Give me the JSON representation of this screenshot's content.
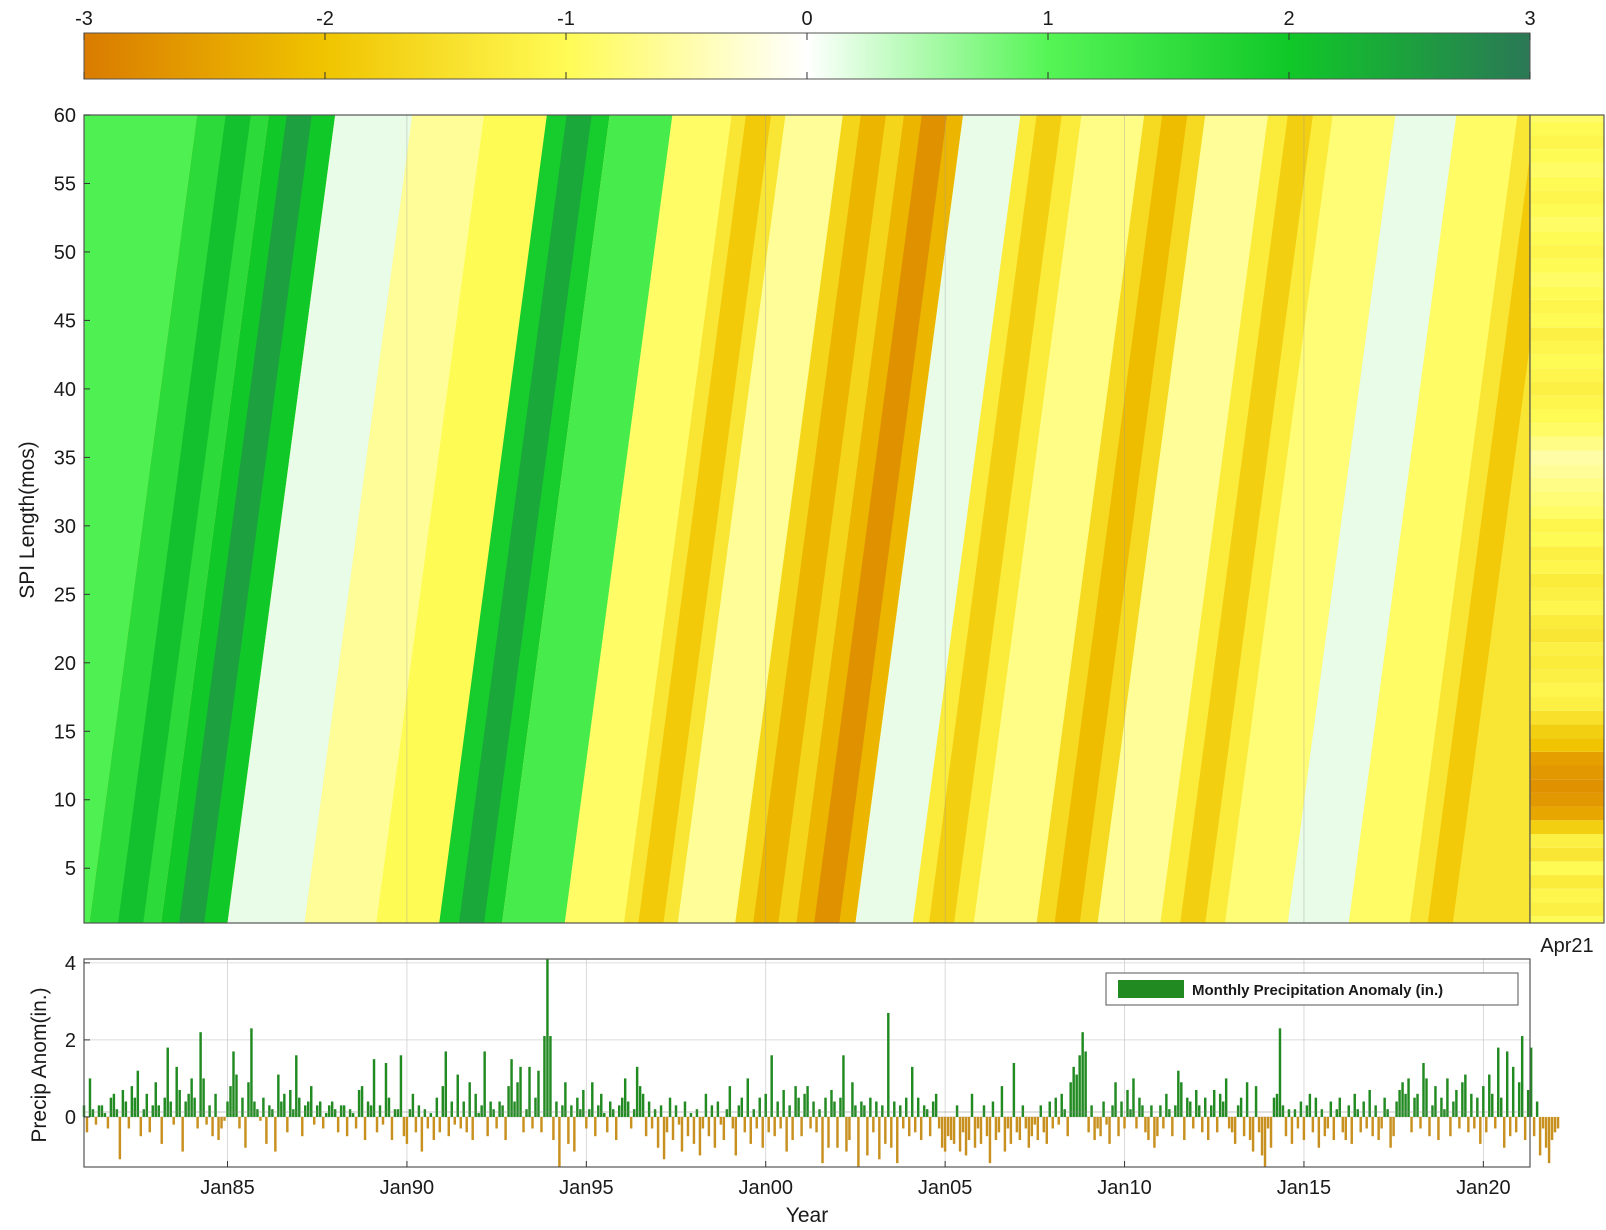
{
  "chart_data": [
    {
      "type": "colorbar",
      "ticks": [
        -3,
        -2,
        -1,
        0,
        1,
        2,
        3
      ],
      "tick_labels": [
        "-3",
        "-2",
        "-1",
        "0",
        "1",
        "2",
        "3"
      ],
      "range": [
        -3,
        3
      ],
      "colors": {
        "-3": "#d97b00",
        "-2": "#f0c400",
        "-1": "#fffb55",
        "0": "#ffffff",
        "1": "#55f555",
        "2": "#10c828",
        "3": "#2a7855"
      }
    },
    {
      "type": "heatmap",
      "ylabel": "SPI Length(mos)",
      "xlabel": "",
      "ylim": [
        1,
        60
      ],
      "y_ticks": [
        5,
        10,
        15,
        20,
        25,
        30,
        35,
        40,
        45,
        50,
        55,
        60
      ],
      "x_range": [
        1981.0,
        2021.3
      ],
      "x_gridlines": [
        1990,
        2000,
        2005,
        2010,
        2015
      ],
      "bands_note": "diagonal SPI anomaly bands",
      "bands": [
        {
          "x": 1981.5,
          "value": 1.1
        },
        {
          "x": 1983.8,
          "value": 1.6
        },
        {
          "x": 1985.5,
          "value": 2.0
        },
        {
          "x": 1987.5,
          "value": 0.3
        },
        {
          "x": 1989.8,
          "value": -0.6
        },
        {
          "x": 1991.5,
          "value": -1.0
        },
        {
          "x": 1993.3,
          "value": 1.9
        },
        {
          "x": 1995.0,
          "value": 1.2
        },
        {
          "x": 1996.8,
          "value": -0.9
        },
        {
          "x": 1998.3,
          "value": -1.4
        },
        {
          "x": 1999.8,
          "value": -0.6
        },
        {
          "x": 2001.5,
          "value": -1.7
        },
        {
          "x": 2003.2,
          "value": -2.2
        },
        {
          "x": 2004.8,
          "value": 0.3
        },
        {
          "x": 2006.4,
          "value": -1.3
        },
        {
          "x": 2008.2,
          "value": -0.7
        },
        {
          "x": 2009.9,
          "value": -1.6
        },
        {
          "x": 2011.6,
          "value": -0.6
        },
        {
          "x": 2013.4,
          "value": -1.3
        },
        {
          "x": 2015.2,
          "value": -0.8
        },
        {
          "x": 2016.9,
          "value": 0.3
        },
        {
          "x": 2018.6,
          "value": -0.9
        },
        {
          "x": 2020.3,
          "value": -1.4
        }
      ],
      "current_column": {
        "label": "Apr21",
        "spi_by_length": [
          -1.0,
          -1.2,
          -1.1,
          -1.3,
          -1.0,
          -1.4,
          -1.2,
          -1.8,
          -2.4,
          -2.6,
          -2.7,
          -2.6,
          -2.5,
          -2.0,
          -1.8,
          -1.5,
          -1.2,
          -1.1,
          -1.2,
          -1.3,
          -1.2,
          -1.4,
          -1.3,
          -1.1,
          -1.2,
          -1.3,
          -1.1,
          -1.2,
          -1.0,
          -1.1,
          -0.9,
          -0.8,
          -0.7,
          -0.6,
          -0.5,
          -0.7,
          -0.9,
          -1.0,
          -1.1,
          -1.2,
          -1.1,
          -1.0,
          -1.1,
          -1.2,
          -1.0,
          -1.1,
          -1.0,
          -0.9,
          -1.0,
          -1.1,
          -1.0,
          -0.9,
          -1.0,
          -1.1,
          -1.0,
          -0.9,
          -1.0,
          -1.1,
          -1.0,
          -0.9
        ]
      }
    },
    {
      "type": "bar",
      "xlabel": "Year",
      "ylabel": "Precip Anom(in.)",
      "ylim": [
        -1.3,
        4.1
      ],
      "y_ticks": [
        0,
        2,
        4
      ],
      "x_range": [
        1981.0,
        2021.3
      ],
      "x_ticks": [
        {
          "x": 1985.0,
          "label": "Jan85"
        },
        {
          "x": 1990.0,
          "label": "Jan90"
        },
        {
          "x": 1995.0,
          "label": "Jan95"
        },
        {
          "x": 2000.0,
          "label": "Jan00"
        },
        {
          "x": 2005.0,
          "label": "Jan05"
        },
        {
          "x": 2010.0,
          "label": "Jan10"
        },
        {
          "x": 2015.0,
          "label": "Jan15"
        },
        {
          "x": 2020.0,
          "label": "Jan20"
        }
      ],
      "legend": {
        "label": "Monthly Precipitation Anomaly (in.)",
        "position": "top-right"
      },
      "colors": {
        "positive": "#218a21",
        "negative": "#c8901e"
      },
      "values_note": "monthly anomalies, Jan 1981 onward",
      "start": 1981.0,
      "step": 0.08333,
      "values": [
        0.3,
        -0.4,
        1.0,
        0.2,
        -0.2,
        0.3,
        0.3,
        0.1,
        -0.3,
        0.5,
        0.6,
        0.2,
        -1.1,
        0.7,
        0.4,
        -0.3,
        0.8,
        0.5,
        1.2,
        -0.5,
        0.2,
        0.6,
        -0.4,
        0.3,
        0.9,
        0.3,
        -0.7,
        0.5,
        1.8,
        0.4,
        -0.2,
        1.3,
        0.7,
        -0.9,
        0.4,
        0.6,
        1.0,
        0.5,
        -0.3,
        2.2,
        1.0,
        -0.2,
        0.3,
        -0.5,
        0.6,
        -0.6,
        -0.3,
        -0.1,
        0.4,
        0.8,
        1.7,
        1.1,
        -0.3,
        0.5,
        -0.8,
        0.9,
        2.3,
        0.4,
        0.2,
        -0.1,
        0.5,
        -0.7,
        0.3,
        0.2,
        -0.9,
        1.1,
        0.4,
        0.6,
        -0.4,
        0.7,
        0.2,
        1.6,
        0.5,
        -0.5,
        0.3,
        0.4,
        0.8,
        -0.2,
        0.3,
        0.4,
        -0.3,
        0.1,
        0.3,
        0.4,
        0.2,
        -0.4,
        0.3,
        0.3,
        -0.5,
        0.2,
        0.1,
        -0.3,
        0.7,
        0.8,
        -0.6,
        0.4,
        0.3,
        1.5,
        -0.4,
        0.3,
        -0.2,
        1.4,
        0.5,
        -0.6,
        0.2,
        0.2,
        1.6,
        -0.5,
        -0.7,
        0.2,
        0.6,
        -0.4,
        0.3,
        -0.9,
        0.2,
        -0.3,
        0.1,
        -0.6,
        0.5,
        -0.4,
        0.8,
        1.7,
        -0.5,
        0.4,
        -0.2,
        1.1,
        -0.3,
        0.4,
        -0.4,
        0.9,
        -0.6,
        0.6,
        0.1,
        0.3,
        1.7,
        -0.5,
        0.4,
        0.2,
        -0.3,
        0.4,
        0.3,
        -0.6,
        0.8,
        1.5,
        0.4,
        0.9,
        1.3,
        -0.4,
        0.2,
        1.3,
        -0.3,
        0.5,
        1.2,
        -0.4,
        2.1,
        4.1,
        2.1,
        -0.6,
        0.4,
        -1.3,
        0.3,
        0.9,
        -0.7,
        0.3,
        -0.9,
        0.5,
        0.2,
        0.7,
        -0.3,
        0.2,
        0.9,
        -0.5,
        0.3,
        0.6,
        0.1,
        -0.4,
        0.4,
        0.2,
        -0.6,
        0.3,
        0.5,
        1.0,
        0.4,
        -0.3,
        0.2,
        1.3,
        0.8,
        0.6,
        -0.5,
        0.4,
        -0.3,
        0.2,
        -0.8,
        0.3,
        -1.1,
        -0.4,
        0.5,
        -0.6,
        0.3,
        -0.2,
        -0.9,
        0.4,
        -0.5,
        0.1,
        -0.7,
        0.2,
        -1.0,
        -0.3,
        0.6,
        -0.5,
        0.3,
        -0.8,
        0.4,
        -0.2,
        -0.6,
        0.2,
        0.8,
        -0.3,
        -1.0,
        0.3,
        0.5,
        -0.4,
        1.0,
        -0.7,
        0.2,
        -0.3,
        0.5,
        -0.8,
        0.6,
        -0.4,
        1.6,
        -0.5,
        0.4,
        -0.3,
        0.7,
        -0.9,
        0.3,
        -0.6,
        0.8,
        0.5,
        -0.5,
        0.6,
        0.8,
        -0.3,
        0.4,
        -0.4,
        0.2,
        -1.2,
        0.5,
        -0.8,
        0.7,
        0.4,
        -0.8,
        0.5,
        1.6,
        -0.9,
        -0.6,
        0.9,
        0.3,
        -1.3,
        0.4,
        0.3,
        -1.0,
        0.5,
        -0.4,
        0.4,
        -1.1,
        0.3,
        -0.7,
        2.7,
        -0.8,
        0.4,
        -1.2,
        0.3,
        -0.3,
        0.5,
        -0.5,
        1.3,
        -0.4,
        0.5,
        -0.6,
        0.3,
        0.2,
        -0.5,
        0.4,
        0.6,
        -0.3,
        -0.8,
        -0.9,
        -0.5,
        -0.6,
        -0.7,
        0.3,
        -0.9,
        -0.4,
        -1.0,
        -0.6,
        0.6,
        -0.8,
        -0.3,
        -0.7,
        0.3,
        -0.5,
        -1.2,
        0.4,
        -0.6,
        -0.4,
        0.8,
        -0.9,
        -0.3,
        -0.7,
        1.4,
        -0.4,
        -0.6,
        0.3,
        -0.3,
        -0.8,
        -0.5,
        -0.2,
        -0.6,
        0.3,
        -0.4,
        -0.7,
        0.4,
        -0.3,
        0.5,
        -0.2,
        0.6,
        0.2,
        -0.5,
        0.9,
        1.3,
        1.1,
        1.6,
        2.2,
        1.7,
        -0.4,
        0.3,
        -0.6,
        -0.3,
        -0.5,
        0.4,
        -0.2,
        -0.7,
        0.3,
        0.9,
        -0.5,
        0.4,
        -0.3,
        0.7,
        0.2,
        1.0,
        -0.3,
        0.5,
        0.3,
        -0.4,
        -0.6,
        0.3,
        -0.8,
        -0.5,
        0.3,
        -0.3,
        0.6,
        0.2,
        -0.5,
        0.3,
        1.2,
        0.9,
        -0.6,
        0.5,
        0.4,
        -0.3,
        0.7,
        0.3,
        -0.4,
        0.5,
        -0.6,
        0.3,
        0.7,
        -0.4,
        0.6,
        0.4,
        1.0,
        -0.3,
        -0.4,
        -0.7,
        0.3,
        0.5,
        -0.5,
        0.9,
        -0.6,
        -0.9,
        0.8,
        -0.4,
        -1.0,
        -1.3,
        -0.3,
        -0.8,
        0.5,
        0.6,
        2.3,
        0.3,
        -0.5,
        0.2,
        -0.7,
        0.2,
        -0.3,
        0.4,
        -0.6,
        0.3,
        0.6,
        -0.4,
        0.5,
        -0.8,
        0.2,
        -0.5,
        -0.3,
        0.4,
        -0.6,
        0.2,
        0.5,
        -0.4,
        -0.6,
        0.3,
        -0.7,
        0.6,
        0.2,
        -0.4,
        0.4,
        -0.3,
        0.7,
        -0.5,
        0.3,
        -0.6,
        -0.3,
        0.5,
        0.2,
        -0.8,
        -0.5,
        0.4,
        0.7,
        0.9,
        0.6,
        1.0,
        -0.4,
        0.5,
        0.6,
        -0.3,
        1.4,
        1.0,
        -0.5,
        0.3,
        0.8,
        -0.6,
        0.5,
        0.2,
        1.0,
        -0.5,
        0.4,
        0.7,
        -0.3,
        0.9,
        1.1,
        -0.4,
        0.6,
        -0.3,
        0.5,
        -0.7,
        0.8,
        -0.4,
        1.1,
        0.6,
        -0.3,
        1.8,
        0.5,
        -0.8,
        1.7,
        -0.5,
        1.3,
        -0.4,
        0.9,
        2.1,
        -0.6,
        0.7,
        1.8,
        -0.5,
        0.4,
        -1.0,
        -0.3,
        -0.8,
        -1.2,
        -0.6,
        -0.4,
        -0.3
      ]
    }
  ]
}
